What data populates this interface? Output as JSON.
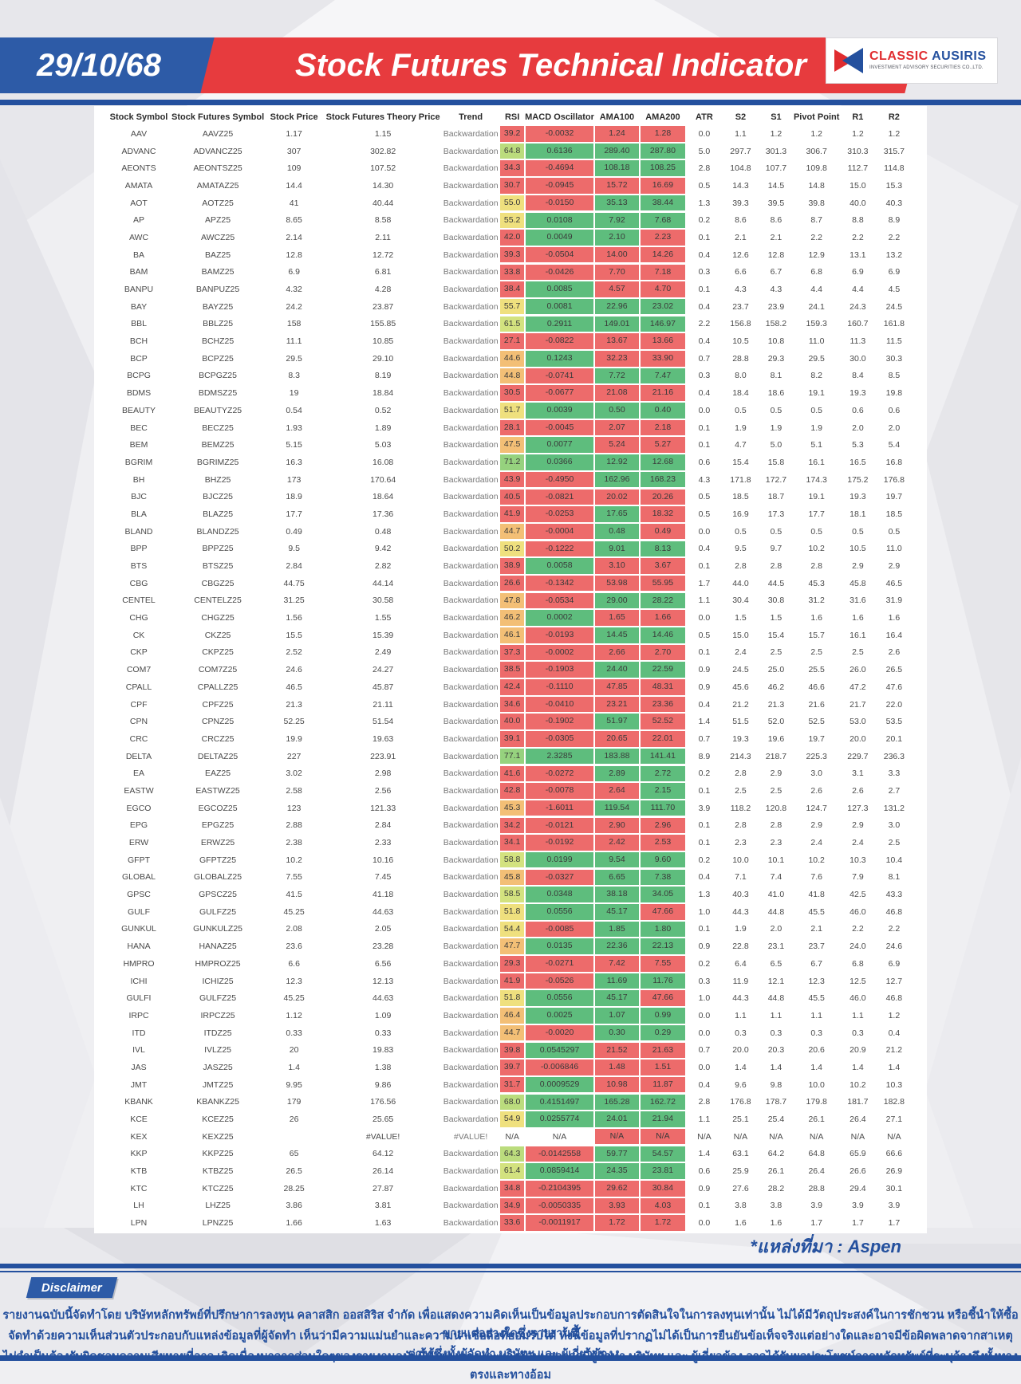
{
  "header": {
    "date": "29/10/68",
    "title": "Stock Futures Technical Indicator",
    "logo": {
      "name1": "CLASSIC",
      "name2": "AUSIRIS",
      "subtitle": "INVESTMENT ADVISORY SECURITIES CO.,LTD."
    }
  },
  "source_note": "*แหล่งที่มา : Aspen",
  "disclaimer": {
    "label": "Disclaimer",
    "lines": [
      "รายงานฉบับนี้จัดทำโดย บริษัทหลักทรัพย์ที่ปรึกษาการลงทุน คลาสสิก ออสสิริส จำกัด  เพื่อแสดงความคิดเห็นเป็นข้อมูลประกอบการตัดสินใจในการลงทุนเท่านั้น ไม่ได้มีวัตถุประสงค์ในการชักชวน หรือชี้นำให้ซื้อขายแต่อย่างใดซึ่งรายงานนี้",
      "จัดทำด้วยความเห็นส่วนตัวประกอบกับแหล่งข้อมูลที่ผู้จัดทำ เห็นว่ามีความแม่นยำและความน่าเชื่อถือที่ยอมรับได้ ทั้งนี้ข้อมูลที่ปรากฏไม่ได้เป็นการยืนยันข้อเท็จจริงแต่อย่างใดและอาจมีข้อผิดพลาดจากสาเหตุต่างๆซึ่งทั้งผู้จัดทำ  บริษัทฯ  และ ผู้เกี่ยวข้อง",
      "ไม่จำเป็นต้องรับผิดชอบความเสียหายที่อาจ เกิดเนื่องมาจากส่วนใดๆของรายงานฉบับนี้ทั้งทางตรงและทางอ้อมนอกจากนี้ผู้จัดทำ บริษัทฯ และ ผู้เกี่ยวข้อง อาจได้รับผลประโยชน์จากหลักทรัพย์ที่ระบุอ้างถึงทั้งทางตรงและทางอ้อม"
    ]
  },
  "colors": {
    "cell_red": "#ED6B6B",
    "cell_green": "#5EBD7D",
    "rsi_orange": "#F3BF76",
    "rsi_yellow": "#EFE07E",
    "rsi_yellow_green": "#D3E27F",
    "rsi_light_green": "#BBDC7D",
    "rsi_green": "#96D27E",
    "brand_blue": "#24509e",
    "brand_red": "#e73b3e"
  },
  "table": {
    "columns": [
      "Stock Symbol",
      "Stock Futures Symbol",
      "Stock Price",
      "Stock Futures Theory Price",
      "Trend",
      "RSI",
      "MACD Oscillator",
      "AMA100",
      "AMA200",
      "ATR",
      "S2",
      "S1",
      "Pivot Point",
      "R1",
      "R2"
    ],
    "rows": [
      [
        "AAV",
        "AAVZ25",
        "1.17",
        "1.15",
        "Backwardation",
        "39.2",
        "-0.0032",
        "1.24",
        "1.28",
        "0.0",
        "1.1",
        "1.2",
        "1.2",
        "1.2",
        "1.2"
      ],
      [
        "ADVANC",
        "ADVANCZ25",
        "307",
        "302.82",
        "Backwardation",
        "64.8",
        "0.6136",
        "289.40",
        "287.80",
        "5.0",
        "297.7",
        "301.3",
        "306.7",
        "310.3",
        "315.7"
      ],
      [
        "AEONTS",
        "AEONTSZ25",
        "109",
        "107.52",
        "Backwardation",
        "34.3",
        "-0.4694",
        "108.18",
        "108.25",
        "2.8",
        "104.8",
        "107.7",
        "109.8",
        "112.7",
        "114.8"
      ],
      [
        "AMATA",
        "AMATAZ25",
        "14.4",
        "14.30",
        "Backwardation",
        "30.7",
        "-0.0945",
        "15.72",
        "16.69",
        "0.5",
        "14.3",
        "14.5",
        "14.8",
        "15.0",
        "15.3"
      ],
      [
        "AOT",
        "AOTZ25",
        "41",
        "40.44",
        "Backwardation",
        "55.0",
        "-0.0150",
        "35.13",
        "38.44",
        "1.3",
        "39.3",
        "39.5",
        "39.8",
        "40.0",
        "40.3"
      ],
      [
        "AP",
        "APZ25",
        "8.65",
        "8.58",
        "Backwardation",
        "55.2",
        "0.0108",
        "7.92",
        "7.68",
        "0.2",
        "8.6",
        "8.6",
        "8.7",
        "8.8",
        "8.9"
      ],
      [
        "AWC",
        "AWCZ25",
        "2.14",
        "2.11",
        "Backwardation",
        "42.0",
        "0.0049",
        "2.10",
        "2.23",
        "0.1",
        "2.1",
        "2.1",
        "2.2",
        "2.2",
        "2.2"
      ],
      [
        "BA",
        "BAZ25",
        "12.8",
        "12.72",
        "Backwardation",
        "39.3",
        "-0.0504",
        "14.00",
        "14.26",
        "0.4",
        "12.6",
        "12.8",
        "12.9",
        "13.1",
        "13.2"
      ],
      [
        "BAM",
        "BAMZ25",
        "6.9",
        "6.81",
        "Backwardation",
        "33.8",
        "-0.0426",
        "7.70",
        "7.18",
        "0.3",
        "6.6",
        "6.7",
        "6.8",
        "6.9",
        "6.9"
      ],
      [
        "BANPU",
        "BANPUZ25",
        "4.32",
        "4.28",
        "Backwardation",
        "38.4",
        "0.0085",
        "4.57",
        "4.70",
        "0.1",
        "4.3",
        "4.3",
        "4.4",
        "4.4",
        "4.5"
      ],
      [
        "BAY",
        "BAYZ25",
        "24.2",
        "23.87",
        "Backwardation",
        "55.7",
        "0.0081",
        "22.96",
        "23.02",
        "0.4",
        "23.7",
        "23.9",
        "24.1",
        "24.3",
        "24.5"
      ],
      [
        "BBL",
        "BBLZ25",
        "158",
        "155.85",
        "Backwardation",
        "61.5",
        "0.2911",
        "149.01",
        "146.97",
        "2.2",
        "156.8",
        "158.2",
        "159.3",
        "160.7",
        "161.8"
      ],
      [
        "BCH",
        "BCHZ25",
        "11.1",
        "10.85",
        "Backwardation",
        "27.1",
        "-0.0822",
        "13.67",
        "13.66",
        "0.4",
        "10.5",
        "10.8",
        "11.0",
        "11.3",
        "11.5"
      ],
      [
        "BCP",
        "BCPZ25",
        "29.5",
        "29.10",
        "Backwardation",
        "44.6",
        "0.1243",
        "32.23",
        "33.90",
        "0.7",
        "28.8",
        "29.3",
        "29.5",
        "30.0",
        "30.3"
      ],
      [
        "BCPG",
        "BCPGZ25",
        "8.3",
        "8.19",
        "Backwardation",
        "44.8",
        "-0.0741",
        "7.72",
        "7.47",
        "0.3",
        "8.0",
        "8.1",
        "8.2",
        "8.4",
        "8.5"
      ],
      [
        "BDMS",
        "BDMSZ25",
        "19",
        "18.84",
        "Backwardation",
        "30.5",
        "-0.0677",
        "21.08",
        "21.16",
        "0.4",
        "18.4",
        "18.6",
        "19.1",
        "19.3",
        "19.8"
      ],
      [
        "BEAUTY",
        "BEAUTYZ25",
        "0.54",
        "0.52",
        "Backwardation",
        "51.7",
        "0.0039",
        "0.50",
        "0.40",
        "0.0",
        "0.5",
        "0.5",
        "0.5",
        "0.6",
        "0.6"
      ],
      [
        "BEC",
        "BECZ25",
        "1.93",
        "1.89",
        "Backwardation",
        "28.1",
        "-0.0045",
        "2.07",
        "2.18",
        "0.1",
        "1.9",
        "1.9",
        "1.9",
        "2.0",
        "2.0"
      ],
      [
        "BEM",
        "BEMZ25",
        "5.15",
        "5.03",
        "Backwardation",
        "47.5",
        "0.0077",
        "5.24",
        "5.27",
        "0.1",
        "4.7",
        "5.0",
        "5.1",
        "5.3",
        "5.4"
      ],
      [
        "BGRIM",
        "BGRIMZ25",
        "16.3",
        "16.08",
        "Backwardation",
        "71.2",
        "0.0366",
        "12.92",
        "12.68",
        "0.6",
        "15.4",
        "15.8",
        "16.1",
        "16.5",
        "16.8"
      ],
      [
        "BH",
        "BHZ25",
        "173",
        "170.64",
        "Backwardation",
        "43.9",
        "-0.4950",
        "162.96",
        "168.23",
        "4.3",
        "171.8",
        "172.7",
        "174.3",
        "175.2",
        "176.8"
      ],
      [
        "BJC",
        "BJCZ25",
        "18.9",
        "18.64",
        "Backwardation",
        "40.5",
        "-0.0821",
        "20.02",
        "20.26",
        "0.5",
        "18.5",
        "18.7",
        "19.1",
        "19.3",
        "19.7"
      ],
      [
        "BLA",
        "BLAZ25",
        "17.7",
        "17.36",
        "Backwardation",
        "41.9",
        "-0.0253",
        "17.65",
        "18.32",
        "0.5",
        "16.9",
        "17.3",
        "17.7",
        "18.1",
        "18.5"
      ],
      [
        "BLAND",
        "BLANDZ25",
        "0.49",
        "0.48",
        "Backwardation",
        "44.7",
        "-0.0004",
        "0.48",
        "0.49",
        "0.0",
        "0.5",
        "0.5",
        "0.5",
        "0.5",
        "0.5"
      ],
      [
        "BPP",
        "BPPZ25",
        "9.5",
        "9.42",
        "Backwardation",
        "50.2",
        "-0.1222",
        "9.01",
        "8.13",
        "0.4",
        "9.5",
        "9.7",
        "10.2",
        "10.5",
        "11.0"
      ],
      [
        "BTS",
        "BTSZ25",
        "2.84",
        "2.82",
        "Backwardation",
        "38.9",
        "0.0058",
        "3.10",
        "3.67",
        "0.1",
        "2.8",
        "2.8",
        "2.8",
        "2.9",
        "2.9"
      ],
      [
        "CBG",
        "CBGZ25",
        "44.75",
        "44.14",
        "Backwardation",
        "26.6",
        "-0.1342",
        "53.98",
        "55.95",
        "1.7",
        "44.0",
        "44.5",
        "45.3",
        "45.8",
        "46.5"
      ],
      [
        "CENTEL",
        "CENTELZ25",
        "31.25",
        "30.58",
        "Backwardation",
        "47.8",
        "-0.0534",
        "29.00",
        "28.22",
        "1.1",
        "30.4",
        "30.8",
        "31.2",
        "31.6",
        "31.9"
      ],
      [
        "CHG",
        "CHGZ25",
        "1.56",
        "1.55",
        "Backwardation",
        "46.2",
        "0.0002",
        "1.65",
        "1.66",
        "0.0",
        "1.5",
        "1.5",
        "1.6",
        "1.6",
        "1.6"
      ],
      [
        "CK",
        "CKZ25",
        "15.5",
        "15.39",
        "Backwardation",
        "46.1",
        "-0.0193",
        "14.45",
        "14.46",
        "0.5",
        "15.0",
        "15.4",
        "15.7",
        "16.1",
        "16.4"
      ],
      [
        "CKP",
        "CKPZ25",
        "2.52",
        "2.49",
        "Backwardation",
        "37.3",
        "-0.0002",
        "2.66",
        "2.70",
        "0.1",
        "2.4",
        "2.5",
        "2.5",
        "2.5",
        "2.6"
      ],
      [
        "COM7",
        "COM7Z25",
        "24.6",
        "24.27",
        "Backwardation",
        "38.5",
        "-0.1903",
        "24.40",
        "22.59",
        "0.9",
        "24.5",
        "25.0",
        "25.5",
        "26.0",
        "26.5"
      ],
      [
        "CPALL",
        "CPALLZ25",
        "46.5",
        "45.87",
        "Backwardation",
        "42.4",
        "-0.1110",
        "47.85",
        "48.31",
        "0.9",
        "45.6",
        "46.2",
        "46.6",
        "47.2",
        "47.6"
      ],
      [
        "CPF",
        "CPFZ25",
        "21.3",
        "21.11",
        "Backwardation",
        "34.6",
        "-0.0410",
        "23.21",
        "23.36",
        "0.4",
        "21.2",
        "21.3",
        "21.6",
        "21.7",
        "22.0"
      ],
      [
        "CPN",
        "CPNZ25",
        "52.25",
        "51.54",
        "Backwardation",
        "40.0",
        "-0.1902",
        "51.97",
        "52.52",
        "1.4",
        "51.5",
        "52.0",
        "52.5",
        "53.0",
        "53.5"
      ],
      [
        "CRC",
        "CRCZ25",
        "19.9",
        "19.63",
        "Backwardation",
        "39.1",
        "-0.0305",
        "20.65",
        "22.01",
        "0.7",
        "19.3",
        "19.6",
        "19.7",
        "20.0",
        "20.1"
      ],
      [
        "DELTA",
        "DELTAZ25",
        "227",
        "223.91",
        "Backwardation",
        "77.1",
        "2.3285",
        "183.88",
        "141.41",
        "8.9",
        "214.3",
        "218.7",
        "225.3",
        "229.7",
        "236.3"
      ],
      [
        "EA",
        "EAZ25",
        "3.02",
        "2.98",
        "Backwardation",
        "41.6",
        "-0.0272",
        "2.89",
        "2.72",
        "0.2",
        "2.8",
        "2.9",
        "3.0",
        "3.1",
        "3.3"
      ],
      [
        "EASTW",
        "EASTWZ25",
        "2.58",
        "2.56",
        "Backwardation",
        "42.8",
        "-0.0078",
        "2.64",
        "2.15",
        "0.1",
        "2.5",
        "2.5",
        "2.6",
        "2.6",
        "2.7"
      ],
      [
        "EGCO",
        "EGCOZ25",
        "123",
        "121.33",
        "Backwardation",
        "45.3",
        "-1.6011",
        "119.54",
        "111.70",
        "3.9",
        "118.2",
        "120.8",
        "124.7",
        "127.3",
        "131.2"
      ],
      [
        "EPG",
        "EPGZ25",
        "2.88",
        "2.84",
        "Backwardation",
        "34.2",
        "-0.0121",
        "2.90",
        "2.96",
        "0.1",
        "2.8",
        "2.8",
        "2.9",
        "2.9",
        "3.0"
      ],
      [
        "ERW",
        "ERWZ25",
        "2.38",
        "2.33",
        "Backwardation",
        "34.1",
        "-0.0192",
        "2.42",
        "2.53",
        "0.1",
        "2.3",
        "2.3",
        "2.4",
        "2.4",
        "2.5"
      ],
      [
        "GFPT",
        "GFPTZ25",
        "10.2",
        "10.16",
        "Backwardation",
        "58.8",
        "0.0199",
        "9.54",
        "9.60",
        "0.2",
        "10.0",
        "10.1",
        "10.2",
        "10.3",
        "10.4"
      ],
      [
        "GLOBAL",
        "GLOBALZ25",
        "7.55",
        "7.45",
        "Backwardation",
        "45.8",
        "-0.0327",
        "6.65",
        "7.38",
        "0.4",
        "7.1",
        "7.4",
        "7.6",
        "7.9",
        "8.1"
      ],
      [
        "GPSC",
        "GPSCZ25",
        "41.5",
        "41.18",
        "Backwardation",
        "58.5",
        "0.0348",
        "38.18",
        "34.05",
        "1.3",
        "40.3",
        "41.0",
        "41.8",
        "42.5",
        "43.3"
      ],
      [
        "GULF",
        "GULFZ25",
        "45.25",
        "44.63",
        "Backwardation",
        "51.8",
        "0.0556",
        "45.17",
        "47.66",
        "1.0",
        "44.3",
        "44.8",
        "45.5",
        "46.0",
        "46.8"
      ],
      [
        "GUNKUL",
        "GUNKULZ25",
        "2.08",
        "2.05",
        "Backwardation",
        "54.4",
        "-0.0085",
        "1.85",
        "1.80",
        "0.1",
        "1.9",
        "2.0",
        "2.1",
        "2.2",
        "2.2"
      ],
      [
        "HANA",
        "HANAZ25",
        "23.6",
        "23.28",
        "Backwardation",
        "47.7",
        "0.0135",
        "22.36",
        "22.13",
        "0.9",
        "22.8",
        "23.1",
        "23.7",
        "24.0",
        "24.6"
      ],
      [
        "HMPRO",
        "HMPROZ25",
        "6.6",
        "6.56",
        "Backwardation",
        "29.3",
        "-0.0271",
        "7.42",
        "7.55",
        "0.2",
        "6.4",
        "6.5",
        "6.7",
        "6.8",
        "6.9"
      ],
      [
        "ICHI",
        "ICHIZ25",
        "12.3",
        "12.13",
        "Backwardation",
        "41.9",
        "-0.0526",
        "11.69",
        "11.76",
        "0.3",
        "11.9",
        "12.1",
        "12.3",
        "12.5",
        "12.7"
      ],
      [
        "GULFI",
        "GULFZ25",
        "45.25",
        "44.63",
        "Backwardation",
        "51.8",
        "0.0556",
        "45.17",
        "47.66",
        "1.0",
        "44.3",
        "44.8",
        "45.5",
        "46.0",
        "46.8"
      ],
      [
        "IRPC",
        "IRPCZ25",
        "1.12",
        "1.09",
        "Backwardation",
        "46.4",
        "0.0025",
        "1.07",
        "0.99",
        "0.0",
        "1.1",
        "1.1",
        "1.1",
        "1.1",
        "1.2"
      ],
      [
        "ITD",
        "ITDZ25",
        "0.33",
        "0.33",
        "Backwardation",
        "44.7",
        "-0.0020",
        "0.30",
        "0.29",
        "0.0",
        "0.3",
        "0.3",
        "0.3",
        "0.3",
        "0.4"
      ],
      [
        "IVL",
        "IVLZ25",
        "20",
        "19.83",
        "Backwardation",
        "39.8",
        "0.0545297",
        "21.52",
        "21.63",
        "0.7",
        "20.0",
        "20.3",
        "20.6",
        "20.9",
        "21.2"
      ],
      [
        "JAS",
        "JASZ25",
        "1.4",
        "1.38",
        "Backwardation",
        "39.7",
        "-0.006846",
        "1.48",
        "1.51",
        "0.0",
        "1.4",
        "1.4",
        "1.4",
        "1.4",
        "1.4"
      ],
      [
        "JMT",
        "JMTZ25",
        "9.95",
        "9.86",
        "Backwardation",
        "31.7",
        "0.0009529",
        "10.98",
        "11.87",
        "0.4",
        "9.6",
        "9.8",
        "10.0",
        "10.2",
        "10.3"
      ],
      [
        "KBANK",
        "KBANKZ25",
        "179",
        "176.56",
        "Backwardation",
        "68.0",
        "0.4151497",
        "165.28",
        "162.72",
        "2.8",
        "176.8",
        "178.7",
        "179.8",
        "181.7",
        "182.8"
      ],
      [
        "KCE",
        "KCEZ25",
        "26",
        "25.65",
        "Backwardation",
        "54.9",
        "0.0255774",
        "24.01",
        "21.94",
        "1.1",
        "25.1",
        "25.4",
        "26.1",
        "26.4",
        "27.1"
      ],
      [
        "KEX",
        "KEXZ25",
        "",
        "#VALUE!",
        "#VALUE!",
        "N/A",
        "N/A",
        "N/A",
        "N/A",
        "N/A",
        "N/A",
        "N/A",
        "N/A",
        "N/A",
        "N/A"
      ],
      [
        "KKP",
        "KKPZ25",
        "65",
        "64.12",
        "Backwardation",
        "64.3",
        "-0.0142558",
        "59.77",
        "54.57",
        "1.4",
        "63.1",
        "64.2",
        "64.8",
        "65.9",
        "66.6"
      ],
      [
        "KTB",
        "KTBZ25",
        "26.5",
        "26.14",
        "Backwardation",
        "61.4",
        "0.0859414",
        "24.35",
        "23.81",
        "0.6",
        "25.9",
        "26.1",
        "26.4",
        "26.6",
        "26.9"
      ],
      [
        "KTC",
        "KTCZ25",
        "28.25",
        "27.87",
        "Backwardation",
        "34.8",
        "-0.2104395",
        "29.62",
        "30.84",
        "0.9",
        "27.6",
        "28.2",
        "28.8",
        "29.4",
        "30.1"
      ],
      [
        "LH",
        "LHZ25",
        "3.86",
        "3.81",
        "Backwardation",
        "34.9",
        "-0.0050335",
        "3.93",
        "4.03",
        "0.1",
        "3.8",
        "3.8",
        "3.9",
        "3.9",
        "3.9"
      ],
      [
        "LPN",
        "LPNZ25",
        "1.66",
        "1.63",
        "Backwardation",
        "33.6",
        "-0.0011917",
        "1.72",
        "1.72",
        "0.0",
        "1.6",
        "1.6",
        "1.7",
        "1.7",
        "1.7"
      ]
    ]
  }
}
